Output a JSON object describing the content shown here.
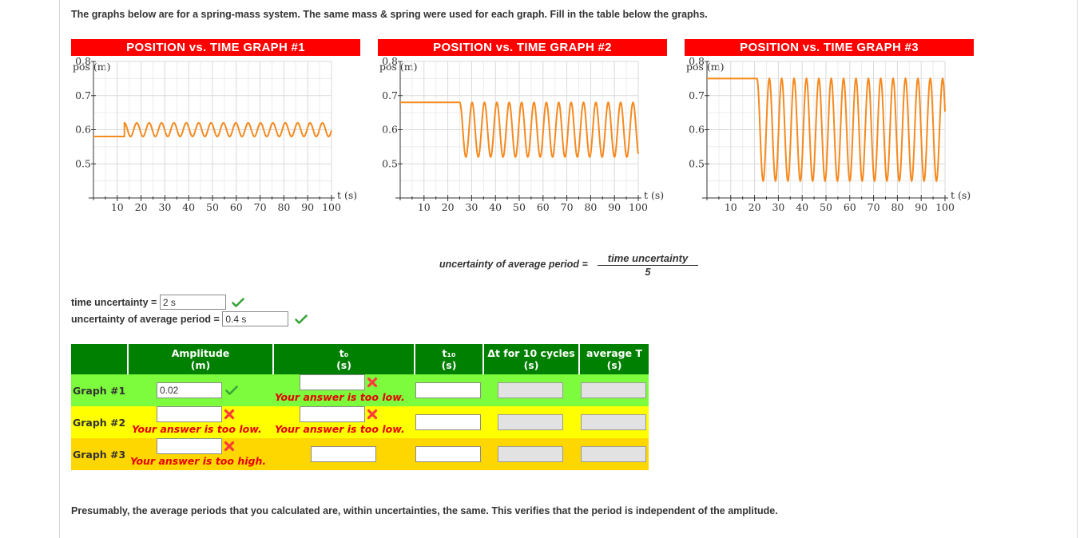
{
  "intro_text": "The graphs below are for a spring-mass system. The same mass & spring were used for each graph. Fill in the table below the graphs.",
  "graphs": [
    {
      "title": "POSITION vs. TIME GRAPH #1",
      "ylabel": "pos (m)",
      "xlabel": "t (s)"
    },
    {
      "title": "POSITION vs. TIME GRAPH #2",
      "ylabel": "pos (m)",
      "xlabel": "t (s)"
    },
    {
      "title": "POSITION vs. TIME GRAPH #3",
      "ylabel": "pos (m)",
      "xlabel": "t (s)"
    }
  ],
  "chart_data": [
    {
      "type": "line",
      "title": "POSITION vs. TIME GRAPH #1",
      "xlabel": "t (s)",
      "ylabel": "pos (m)",
      "xlim": [
        0,
        100
      ],
      "ylim": [
        0.4,
        0.8
      ],
      "x_ticks": [
        10,
        20,
        30,
        40,
        50,
        60,
        70,
        80,
        90,
        100
      ],
      "y_ticks": [
        0.5,
        0.6,
        0.7,
        0.8
      ],
      "grid": true,
      "color": "#f58a1f",
      "series": [
        {
          "equilibrium": 0.6,
          "amplitude": 0.02,
          "start_time": 13.0,
          "start_value": 0.58,
          "period": 5.2,
          "end_time": 100
        }
      ]
    },
    {
      "type": "line",
      "title": "POSITION vs. TIME GRAPH #2",
      "xlabel": "t (s)",
      "ylabel": "pos (m)",
      "xlim": [
        0,
        100
      ],
      "ylim": [
        0.4,
        0.8
      ],
      "x_ticks": [
        10,
        20,
        30,
        40,
        50,
        60,
        70,
        80,
        90,
        100
      ],
      "y_ticks": [
        0.5,
        0.6,
        0.7,
        0.8
      ],
      "grid": true,
      "color": "#f58a1f",
      "series": [
        {
          "equilibrium": 0.6,
          "amplitude": 0.08,
          "start_time": 25.0,
          "start_value": 0.68,
          "period": 5.2,
          "end_time": 100
        }
      ]
    },
    {
      "type": "line",
      "title": "POSITION vs. TIME GRAPH #3",
      "xlabel": "t (s)",
      "ylabel": "pos (m)",
      "xlim": [
        0,
        100
      ],
      "ylim": [
        0.4,
        0.8
      ],
      "x_ticks": [
        10,
        20,
        30,
        40,
        50,
        60,
        70,
        80,
        90,
        100
      ],
      "y_ticks": [
        0.5,
        0.6,
        0.7,
        0.8
      ],
      "grid": true,
      "color": "#f58a1f",
      "series": [
        {
          "equilibrium": 0.6,
          "amplitude": 0.15,
          "start_time": 21.0,
          "start_value": 0.75,
          "period": 5.2,
          "end_time": 100
        }
      ]
    }
  ],
  "formula": {
    "lhs": "uncertainty of average period =",
    "numerator": "time uncertainty",
    "denominator": "5"
  },
  "time_uncertainty": {
    "label": "time uncertainty =",
    "value": "2 s"
  },
  "avg_period_uncertainty": {
    "label": "uncertainty of average period =",
    "value": "0.4 s"
  },
  "table": {
    "headers": [
      {
        "line1": "",
        "line2": ""
      },
      {
        "line1": "Amplitude",
        "line2": "(m)"
      },
      {
        "line1": "t₀",
        "line2": "(s)"
      },
      {
        "line1": "t₁₀",
        "line2": "(s)"
      },
      {
        "line1": "Δt for 10 cycles",
        "line2": "(s)"
      },
      {
        "line1": "average T",
        "line2": "(s)"
      }
    ],
    "rows": [
      {
        "label": "Graph #1",
        "amplitude": "0.02",
        "amplitude_msg": "",
        "t0": "",
        "t0_msg": "Your answer is too low."
      },
      {
        "label": "Graph #2",
        "amplitude": "",
        "amplitude_msg": "Your answer is too low.",
        "t0": "",
        "t0_msg": "Your answer is too low."
      },
      {
        "label": "Graph #3",
        "amplitude": "",
        "amplitude_msg": "Your answer is too high.",
        "t0": "",
        "t0_msg": ""
      }
    ]
  },
  "outro_text": "Presumably, the average periods that you calculated are, within uncertainties, the same. This verifies that the period is independent of the amplitude.",
  "colors": {
    "title_bg": "#ff0000",
    "header_bg": "#008000",
    "row1_bg": "#7cfc3c",
    "row2_bg": "#ffff00",
    "row3_bg": "#ffd700",
    "curve": "#f58a1f",
    "error": "#e60000",
    "check": "#3aa53a"
  },
  "icons": {
    "correct": "check-icon",
    "incorrect": "cross-icon"
  }
}
